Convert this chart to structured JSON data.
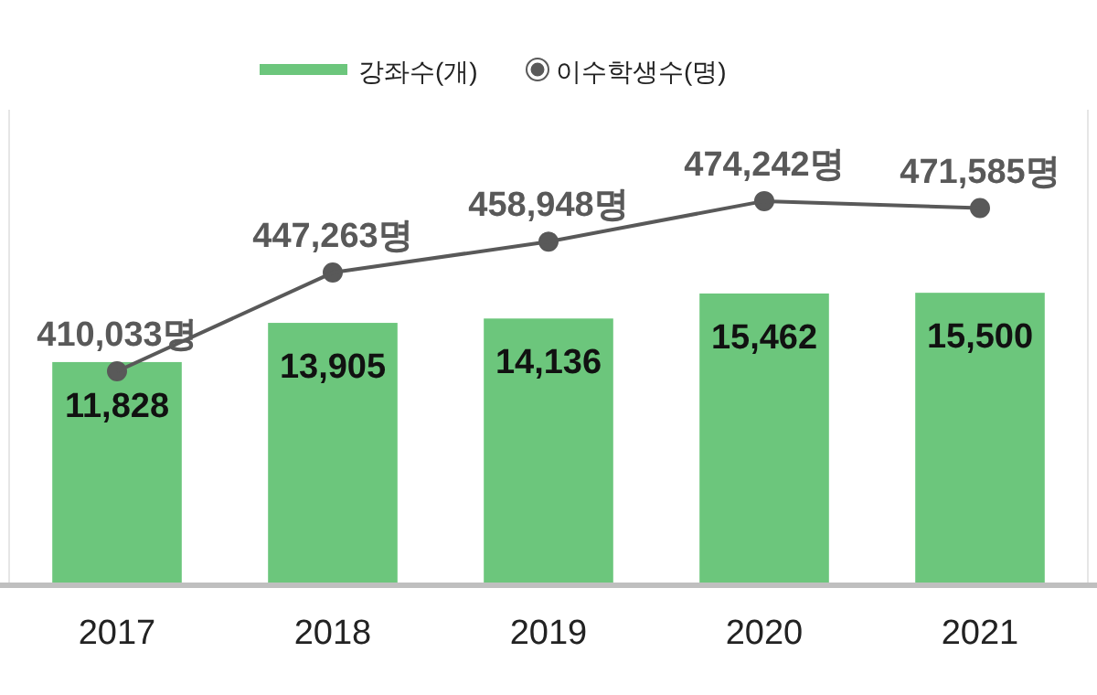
{
  "chart_data": {
    "type": "bar",
    "categories": [
      "2017",
      "2018",
      "2019",
      "2020",
      "2021"
    ],
    "series": [
      {
        "name": "강좌수(개)",
        "color": "#6cc67c",
        "values": [
          11828,
          13905,
          14136,
          15462,
          15500
        ],
        "value_labels": [
          "11,828",
          "13,905",
          "14,136",
          "15,462",
          "15,500"
        ]
      },
      {
        "name": "이수학생수(명)",
        "type": "line",
        "axis": "y2",
        "color": "#595959",
        "marker": "circle",
        "values": [
          410033,
          447263,
          458948,
          474242,
          471585
        ],
        "value_labels": [
          "410,033명",
          "447,263명",
          "458,948명",
          "474,242명",
          "471,585명"
        ]
      }
    ],
    "ylim": [
      0,
      25200
    ],
    "y2lim": [
      329300,
      508700
    ],
    "tick_labels": "x",
    "legend": "top"
  }
}
